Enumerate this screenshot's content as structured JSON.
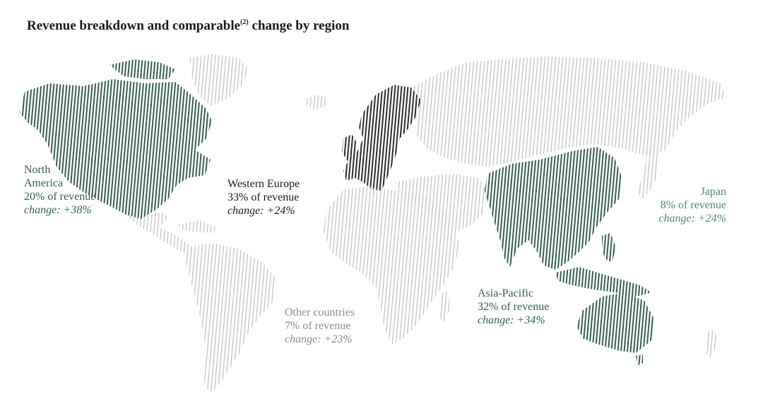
{
  "title": {
    "main": "Revenue breakdown and comparable",
    "superscript": "(2)",
    "suffix": "change by region"
  },
  "colors": {
    "north_america": "#345f4c",
    "western_europe": "#2b2b2b",
    "asia_pacific": "#345f4c",
    "japan": "#4f8a72",
    "other_countries": "#8c8c8c",
    "base_map": "#c4c4c4"
  },
  "regions": {
    "north_america": {
      "name": "North America",
      "name_line1": "North",
      "name_line2": "America",
      "revenue_share_pct": 20,
      "revenue": "20% of revenue",
      "change_pct": 38,
      "change": "change: +38%"
    },
    "western_europe": {
      "name": "Western Europe",
      "revenue_share_pct": 33,
      "revenue": "33% of revenue",
      "change_pct": 24,
      "change": "change: +24%"
    },
    "japan": {
      "name": "Japan",
      "revenue_share_pct": 8,
      "revenue": "8% of revenue",
      "change_pct": 24,
      "change": "change: +24%"
    },
    "asia_pacific": {
      "name": "Asia-Pacific",
      "revenue_share_pct": 32,
      "revenue": "32% of revenue",
      "change_pct": 34,
      "change": "change: +34%"
    },
    "other_countries": {
      "name": "Other countries",
      "revenue_share_pct": 7,
      "revenue": "7% of revenue",
      "change_pct": 23,
      "change": "change: +23%"
    }
  }
}
